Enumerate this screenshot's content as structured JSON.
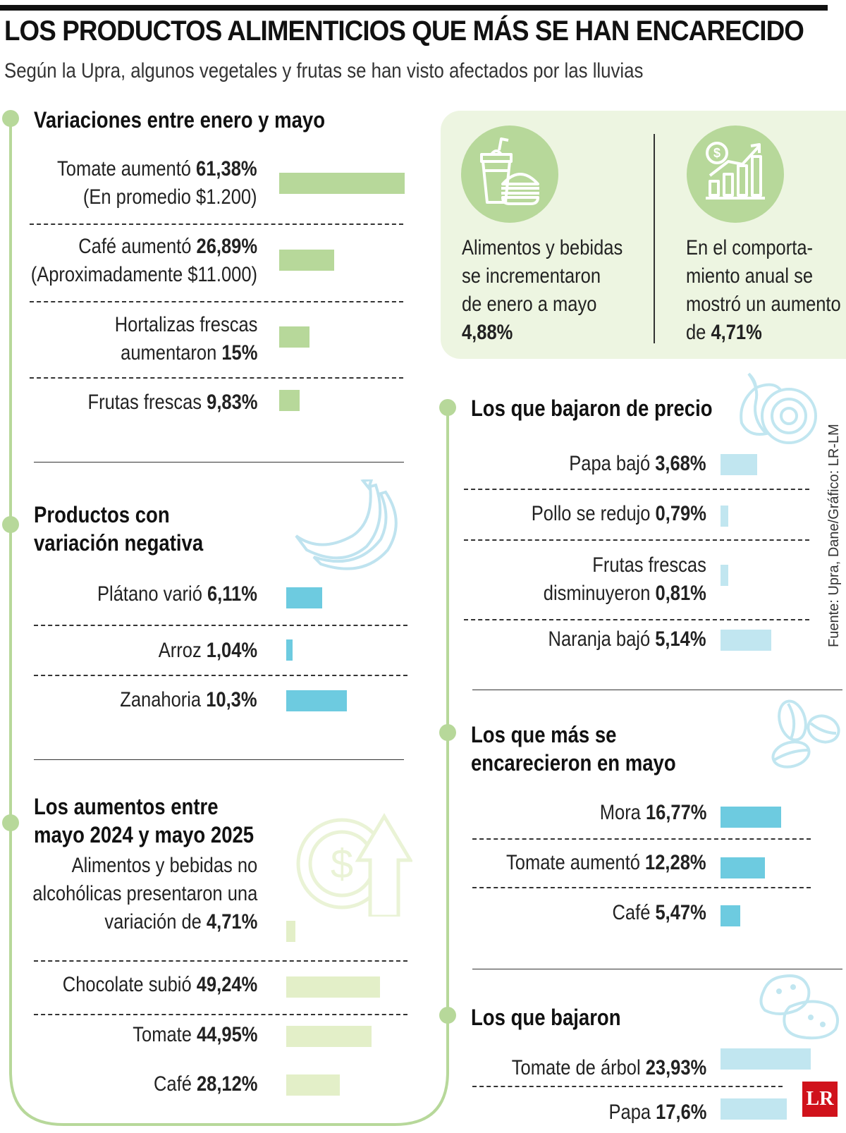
{
  "header": {
    "title": "LOS PRODUCTOS ALIMENTICIOS QUE MÁS SE HAN ENCARECIDO",
    "subtitle": "Según la Upra, algunos vegetales y frutas se han visto afectados por las lluvias"
  },
  "colors": {
    "green_bar": "#b7d89a",
    "cyan_bar": "#6dcbe0",
    "lightgreen_bar": "#e3efc8",
    "lightblue_bar": "#c1e6f0",
    "panel": "#edf5e1",
    "icon_circle": "#b7d89a"
  },
  "stats_panel": {
    "left": {
      "text1": "Alimentos y bebidas",
      "text2": "se incrementaron",
      "text3": "de enero a mayo",
      "value": "4,88%"
    },
    "right": {
      "text1": "En el comporta-",
      "text2": "miento anual se",
      "text3": "mostró un aumento",
      "prefix": "de ",
      "value": "4,71%"
    }
  },
  "chart_data": [
    {
      "type": "bar",
      "title": "Variaciones entre enero y mayo",
      "categories": [
        "Tomate aumentó",
        "Café aumentó",
        "Hortalizas frescas aumentaron",
        "Frutas frescas"
      ],
      "values": [
        61.38,
        26.89,
        15,
        9.83
      ],
      "unit": "%",
      "labels": [
        {
          "pre": "Tomate aumentó ",
          "val": "61,38%",
          "line2": "(En promedio $1.200)"
        },
        {
          "pre": "Café aumentó ",
          "val": "26,89%",
          "line2": "(Aproximadamente $11.000)"
        },
        {
          "pre": "Hortalizas frescas",
          "val": "",
          "line2pre": "aumentaron ",
          "line2val": "15%"
        },
        {
          "pre": "Frutas frescas ",
          "val": "9,83%"
        }
      ]
    },
    {
      "type": "bar",
      "title": "Productos con variación negativa",
      "title_line1": "Productos con",
      "title_line2": "variación negativa",
      "categories": [
        "Plátano varió",
        "Arroz",
        "Zanahoria"
      ],
      "values": [
        6.11,
        1.04,
        10.3
      ],
      "unit": "%",
      "labels": [
        {
          "pre": "Plátano varió ",
          "val": "6,11%"
        },
        {
          "pre": "Arroz ",
          "val": "1,04%"
        },
        {
          "pre": "Zanahoria ",
          "val": "10,3%"
        }
      ]
    },
    {
      "type": "bar",
      "title": "Los aumentos entre mayo 2024 y mayo 2025",
      "title_line1": "Los aumentos entre",
      "title_line2": "mayo 2024 y mayo 2025",
      "categories": [
        "Alimentos y bebidas no alcohólicas",
        "Chocolate subió",
        "Tomate",
        "Café"
      ],
      "values": [
        4.71,
        49.24,
        44.95,
        28.12
      ],
      "unit": "%",
      "labels": [
        {
          "line1": "Alimentos y bebidas no",
          "line2": "alcohólicas presentaron una",
          "pre": "variación de ",
          "val": "4,71%"
        },
        {
          "pre": "Chocolate subió ",
          "val": "49,24%"
        },
        {
          "pre": "Tomate ",
          "val": "44,95%"
        },
        {
          "pre": "Café ",
          "val": "28,12%"
        }
      ]
    },
    {
      "type": "bar",
      "title": "Los que bajaron de precio",
      "categories": [
        "Papa bajó",
        "Pollo se redujo",
        "Frutas frescas disminuyeron",
        "Naranja bajó"
      ],
      "values": [
        3.68,
        0.79,
        0.81,
        5.14
      ],
      "unit": "%",
      "labels": [
        {
          "pre": "Papa bajó ",
          "val": "3,68%"
        },
        {
          "pre": "Pollo se redujo ",
          "val": "0,79%"
        },
        {
          "line1": "Frutas frescas",
          "pre": "disminuyeron ",
          "val": "0,81%"
        },
        {
          "pre": "Naranja bajó ",
          "val": "5,14%"
        }
      ]
    },
    {
      "type": "bar",
      "title": "Los que más se encarecieron en mayo",
      "title_line1": "Los que más se",
      "title_line2": "encarecieron en mayo",
      "categories": [
        "Mora",
        "Tomate aumentó",
        "Café"
      ],
      "values": [
        16.77,
        12.28,
        5.47
      ],
      "unit": "%",
      "labels": [
        {
          "pre": "Mora ",
          "val": "16,77%"
        },
        {
          "pre": "Tomate aumentó ",
          "val": "12,28%"
        },
        {
          "pre": "Café ",
          "val": "5,47%"
        }
      ]
    },
    {
      "type": "bar",
      "title": "Los que bajaron",
      "categories": [
        "Tomate de árbol",
        "Papa"
      ],
      "values": [
        23.93,
        17.6
      ],
      "unit": "%",
      "labels": [
        {
          "pre": "Tomate de árbol ",
          "val": "23,93%"
        },
        {
          "pre": "Papa ",
          "val": "17,6%"
        }
      ]
    }
  ],
  "footer": {
    "source": "Fuente: Upra, Dane/Gráfico: LR-LM",
    "logo": "LR"
  }
}
